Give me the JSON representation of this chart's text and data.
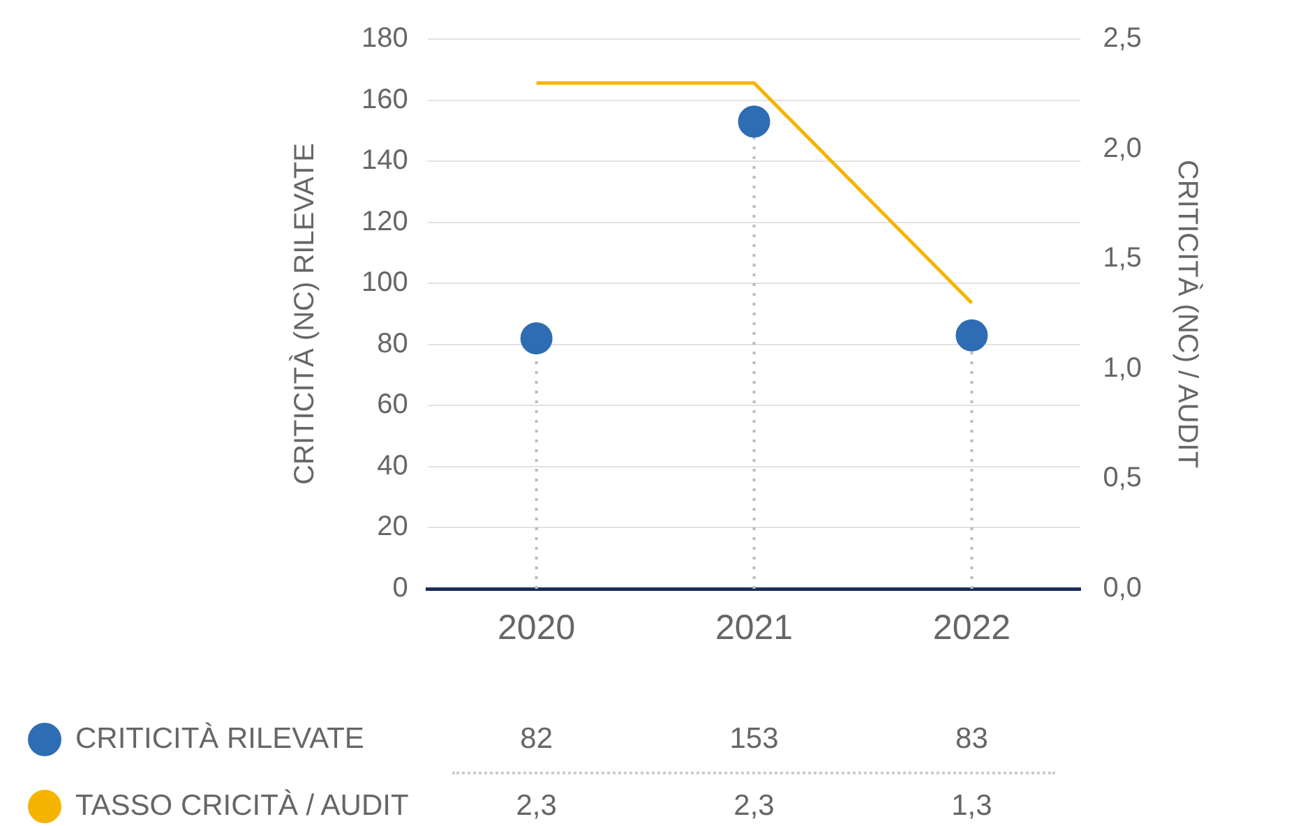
{
  "chart_data": {
    "type": "lollipop",
    "categories": [
      "2020",
      "2021",
      "2022"
    ],
    "series": [
      {
        "name": "CRITICITÀ RILEVATE",
        "type": "lollipop",
        "marker": "circle",
        "color": "#2e6db3",
        "values": [
          82,
          153,
          83
        ],
        "value_labels": [
          "82",
          "153",
          "83"
        ]
      },
      {
        "name": "TASSO CRICITÀ / AUDIT",
        "type": "line",
        "marker": "none",
        "axis": "y2",
        "color": "#f5b400",
        "values": [
          2.3,
          2.3,
          1.3
        ],
        "value_labels": [
          "2,3",
          "2,3",
          "1,3"
        ]
      }
    ],
    "ylabel": "CRITICITÀ (NC) RILEVATE",
    "y2label": "CRITICITÀ (NC) / AUDIT",
    "ylim": [
      0,
      180
    ],
    "yticks": [
      0,
      20,
      40,
      60,
      80,
      100,
      120,
      140,
      160,
      180
    ],
    "y2lim": [
      0,
      2.5
    ],
    "y2ticks": [
      {
        "value": 0,
        "label": "0,0"
      },
      {
        "value": 0.5,
        "label": "0,5"
      },
      {
        "value": 1,
        "label": "1,0"
      },
      {
        "value": 1.5,
        "label": "1,5"
      },
      {
        "value": 2,
        "label": "2,0"
      },
      {
        "value": 2.5,
        "label": "2,5"
      }
    ],
    "grid": "y",
    "legend": "bottom"
  }
}
